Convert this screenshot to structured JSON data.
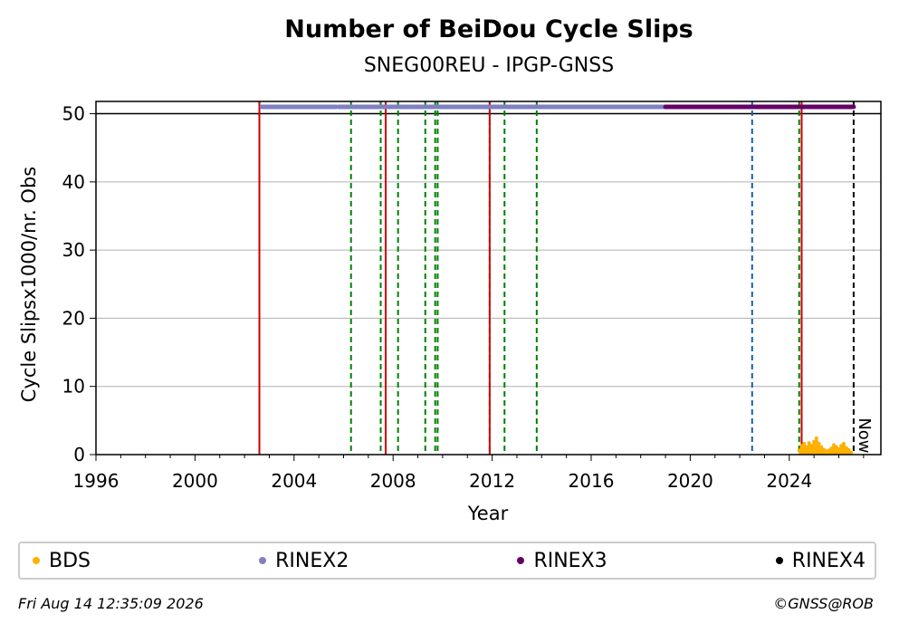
{
  "chart_data": {
    "type": "scatter",
    "title": "Number of BeiDou Cycle Slips",
    "subtitle": "SNEG00REU - IPGP-GNSS",
    "xlabel": "Year",
    "ylabel": "Cycle Slipsx1000/nr. Obs",
    "xlim": [
      1996.0,
      2027.7
    ],
    "ylim": [
      0,
      51.8
    ],
    "xticks": [
      1996,
      2000,
      2004,
      2008,
      2012,
      2016,
      2020,
      2024
    ],
    "yticks": [
      0,
      10,
      20,
      30,
      40,
      50
    ],
    "grid": "horizontal",
    "colors": {
      "BDS": "#ffb000",
      "RINEX2": "#8080c0",
      "RINEX3": "#660066",
      "RINEX4": "#000000"
    },
    "series": [
      {
        "name": "BDS",
        "type": "area",
        "x": [
          2024.4,
          2024.5,
          2024.6,
          2024.7,
          2024.8,
          2024.9,
          2025.0,
          2025.1,
          2025.2,
          2025.3,
          2025.4,
          2025.5,
          2025.6,
          2025.7,
          2025.8,
          2025.9,
          2026.0,
          2026.1,
          2026.2,
          2026.3,
          2026.4,
          2026.5
        ],
        "y": [
          0.6,
          1.3,
          1.6,
          1.1,
          1.7,
          1.3,
          1.9,
          2.4,
          1.6,
          1.1,
          0.7,
          0.5,
          0.6,
          0.9,
          1.4,
          1.1,
          0.8,
          1.3,
          1.6,
          1.0,
          0.7,
          0.3
        ]
      },
      {
        "name": "RINEX2",
        "type": "band",
        "y": 51,
        "segments": [
          [
            2002.7,
            2005.7
          ],
          [
            2005.8,
            2019.0
          ]
        ]
      },
      {
        "name": "RINEX3",
        "type": "band",
        "y": 51,
        "segments": [
          [
            2019.0,
            2026.6
          ]
        ]
      },
      {
        "name": "RINEX4",
        "type": "band",
        "y": 51,
        "segments": []
      }
    ],
    "reference_line_y": 50,
    "event_lines": [
      {
        "x": 2002.6,
        "color": "#008000",
        "style": "dashed"
      },
      {
        "x": 2002.6,
        "color": "#cc0000",
        "style": "solid"
      },
      {
        "x": 2006.3,
        "color": "#008000",
        "style": "dashed"
      },
      {
        "x": 2007.5,
        "color": "#008000",
        "style": "dashed"
      },
      {
        "x": 2007.7,
        "color": "#cc0000",
        "style": "solid"
      },
      {
        "x": 2008.2,
        "color": "#008000",
        "style": "dashed"
      },
      {
        "x": 2009.3,
        "color": "#008000",
        "style": "dashed"
      },
      {
        "x": 2009.7,
        "color": "#008000",
        "style": "dashed"
      },
      {
        "x": 2009.8,
        "color": "#008000",
        "style": "dashed"
      },
      {
        "x": 2011.9,
        "color": "#008000",
        "style": "dashed"
      },
      {
        "x": 2011.9,
        "color": "#cc0000",
        "style": "solid"
      },
      {
        "x": 2012.5,
        "color": "#008000",
        "style": "dashed"
      },
      {
        "x": 2013.8,
        "color": "#008000",
        "style": "dashed"
      },
      {
        "x": 2022.5,
        "color": "#1060b0",
        "style": "dashed"
      },
      {
        "x": 2024.4,
        "color": "#008000",
        "style": "dashed"
      },
      {
        "x": 2024.5,
        "color": "#cc0000",
        "style": "solid"
      },
      {
        "x": 2026.6,
        "color": "#000000",
        "style": "dashed"
      }
    ],
    "now_label": "Now",
    "now_x": 2026.6
  },
  "footer": {
    "timestamp": "Fri Aug 14 12:35:09 2026",
    "credit": "©GNSS@ROB"
  }
}
